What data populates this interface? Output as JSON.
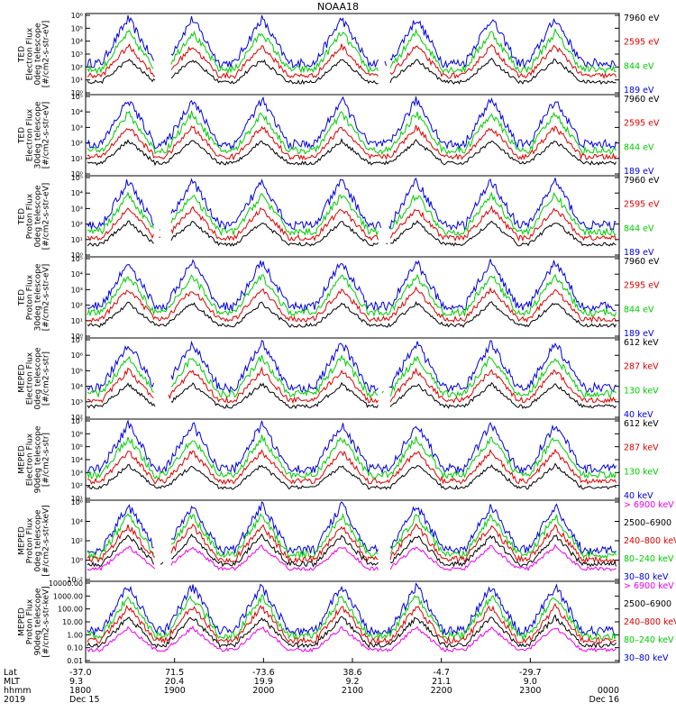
{
  "chart_data": {
    "type": "line",
    "title": "NOAA18",
    "panels": [
      {
        "ylabel": [
          "TED",
          "Electron Flux",
          "0deg telescope",
          "[#/cm2-s-str-eV]"
        ],
        "ticks": [
          "10⁶",
          "10⁵",
          "10⁴",
          "10³",
          "10²",
          "10¹",
          "10⁰"
        ],
        "ylog": [
          0,
          6
        ],
        "legend": [
          {
            "label": "7960 eV",
            "color": "#000000"
          },
          {
            "label": "2595 eV",
            "color": "#dd0000"
          },
          {
            "label": "844 eV",
            "color": "#00cc00"
          },
          {
            "label": "189 eV",
            "color": "#0000dd"
          }
        ]
      },
      {
        "ylabel": [
          "TED",
          "Electron Flux",
          "30deg telescope",
          "[#/cm2-s-str-eV]"
        ],
        "ticks": [
          "10⁵",
          "10⁴",
          "10³",
          "10²",
          "10¹",
          "10⁰"
        ],
        "ylog": [
          0,
          5
        ],
        "legend": [
          {
            "label": "7960 eV",
            "color": "#000000"
          },
          {
            "label": "2595 eV",
            "color": "#dd0000"
          },
          {
            "label": "844 eV",
            "color": "#00cc00"
          },
          {
            "label": "189 eV",
            "color": "#0000dd"
          }
        ]
      },
      {
        "ylabel": [
          "TED",
          "Proton Flux",
          "0deg telescope",
          "[#/cm2-s-str-eV]"
        ],
        "ticks": [
          "10⁵",
          "10⁴",
          "10³",
          "10²",
          "10¹",
          "10⁰"
        ],
        "ylog": [
          0,
          5
        ],
        "legend": [
          {
            "label": "7960 eV",
            "color": "#000000"
          },
          {
            "label": "2595 eV",
            "color": "#dd0000"
          },
          {
            "label": "844 eV",
            "color": "#00cc00"
          },
          {
            "label": "189 eV",
            "color": "#0000dd"
          }
        ]
      },
      {
        "ylabel": [
          "TED",
          "Proton Flux",
          "30deg telescope",
          "[#/cm2-s-str-eV]"
        ],
        "ticks": [
          "10⁵",
          "10⁴",
          "10³",
          "10²",
          "10¹",
          "10⁰"
        ],
        "ylog": [
          0,
          5
        ],
        "legend": [
          {
            "label": "7960 eV",
            "color": "#000000"
          },
          {
            "label": "2595 eV",
            "color": "#dd0000"
          },
          {
            "label": "844 eV",
            "color": "#00cc00"
          },
          {
            "label": "189 eV",
            "color": "#0000dd"
          }
        ]
      },
      {
        "ylabel": [
          "MEPED",
          "Electron Flux",
          "0deg telescope",
          "[#/cm2-s-str]"
        ],
        "ticks": [
          "10⁷",
          "10⁶",
          "10⁵",
          "10⁴",
          "10³",
          "10²"
        ],
        "ylog": [
          2,
          7
        ],
        "legend": [
          {
            "label": "612 keV",
            "color": "#000000"
          },
          {
            "label": "287 keV",
            "color": "#dd0000"
          },
          {
            "label": "130 keV",
            "color": "#00cc00"
          },
          {
            "label": "40 keV",
            "color": "#0000dd"
          }
        ]
      },
      {
        "ylabel": [
          "MEPED",
          "Electron Flux",
          "90deg telescope",
          "[#/cm2-s-str]"
        ],
        "ticks": [
          "10⁷",
          "10⁶",
          "10⁵",
          "10⁴",
          "10³",
          "10²",
          "10¹"
        ],
        "ylog": [
          1,
          7
        ],
        "legend": [
          {
            "label": "612 keV",
            "color": "#000000"
          },
          {
            "label": "287 keV",
            "color": "#dd0000"
          },
          {
            "label": "130 keV",
            "color": "#00cc00"
          },
          {
            "label": "40 keV",
            "color": "#0000dd"
          }
        ]
      },
      {
        "ylabel": [
          "MEPED",
          "Proton Flux",
          "0deg telescope",
          "[#/cm2-s-str-keV]"
        ],
        "ticks": [
          "10⁶",
          "10⁴",
          "10²",
          "10⁰",
          "10⁻²"
        ],
        "ylog": [
          -2,
          6
        ],
        "legend": [
          {
            "label": "> 6900 keV",
            "color": "#ee00ee"
          },
          {
            "label": "2500–6900",
            "color": "#000000"
          },
          {
            "label": "240–800 keV",
            "color": "#dd0000"
          },
          {
            "label": "80–240 keV",
            "color": "#00cc00"
          },
          {
            "label": "30–80 keV",
            "color": "#0000dd"
          }
        ]
      },
      {
        "ylabel": [
          "MEPED",
          "Proton Flux",
          "90deg telescope",
          "[#/cm2-s-str-keV]"
        ],
        "ticks": [
          "10000.00",
          "1000.00",
          "100.00",
          "10.00",
          "1.00",
          "0.10",
          "0.01"
        ],
        "ylog": [
          -2,
          4
        ],
        "legend": [
          {
            "label": "> 6900 keV",
            "color": "#ee00ee"
          },
          {
            "label": "2500–6900",
            "color": "#000000"
          },
          {
            "label": "240–800 keV",
            "color": "#dd0000"
          },
          {
            "label": "80–240 keV",
            "color": "#00cc00"
          },
          {
            "label": "30–80 keV",
            "color": "#0000dd"
          }
        ]
      }
    ],
    "x_axis": {
      "row_labels": [
        "Lat",
        "MLT",
        "hhmm",
        "2019"
      ],
      "columns": [
        {
          "lat": "-37.0",
          "mlt": "9.3",
          "hhmm": "1800",
          "date": "Dec 15"
        },
        {
          "lat": "71.5",
          "mlt": "20.4",
          "hhmm": "1900",
          "date": ""
        },
        {
          "lat": "-73.6",
          "mlt": "19.9",
          "hhmm": "2000",
          "date": ""
        },
        {
          "lat": "38.6",
          "mlt": "9.2",
          "hhmm": "2100",
          "date": ""
        },
        {
          "lat": "-4.7",
          "mlt": "21.1",
          "hhmm": "2200",
          "date": ""
        },
        {
          "lat": "-29.7",
          "mlt": "9.0",
          "hhmm": "2300",
          "date": ""
        },
        {
          "lat": "",
          "mlt": "",
          "hhmm": "0000",
          "date": "Dec 16"
        }
      ]
    }
  }
}
